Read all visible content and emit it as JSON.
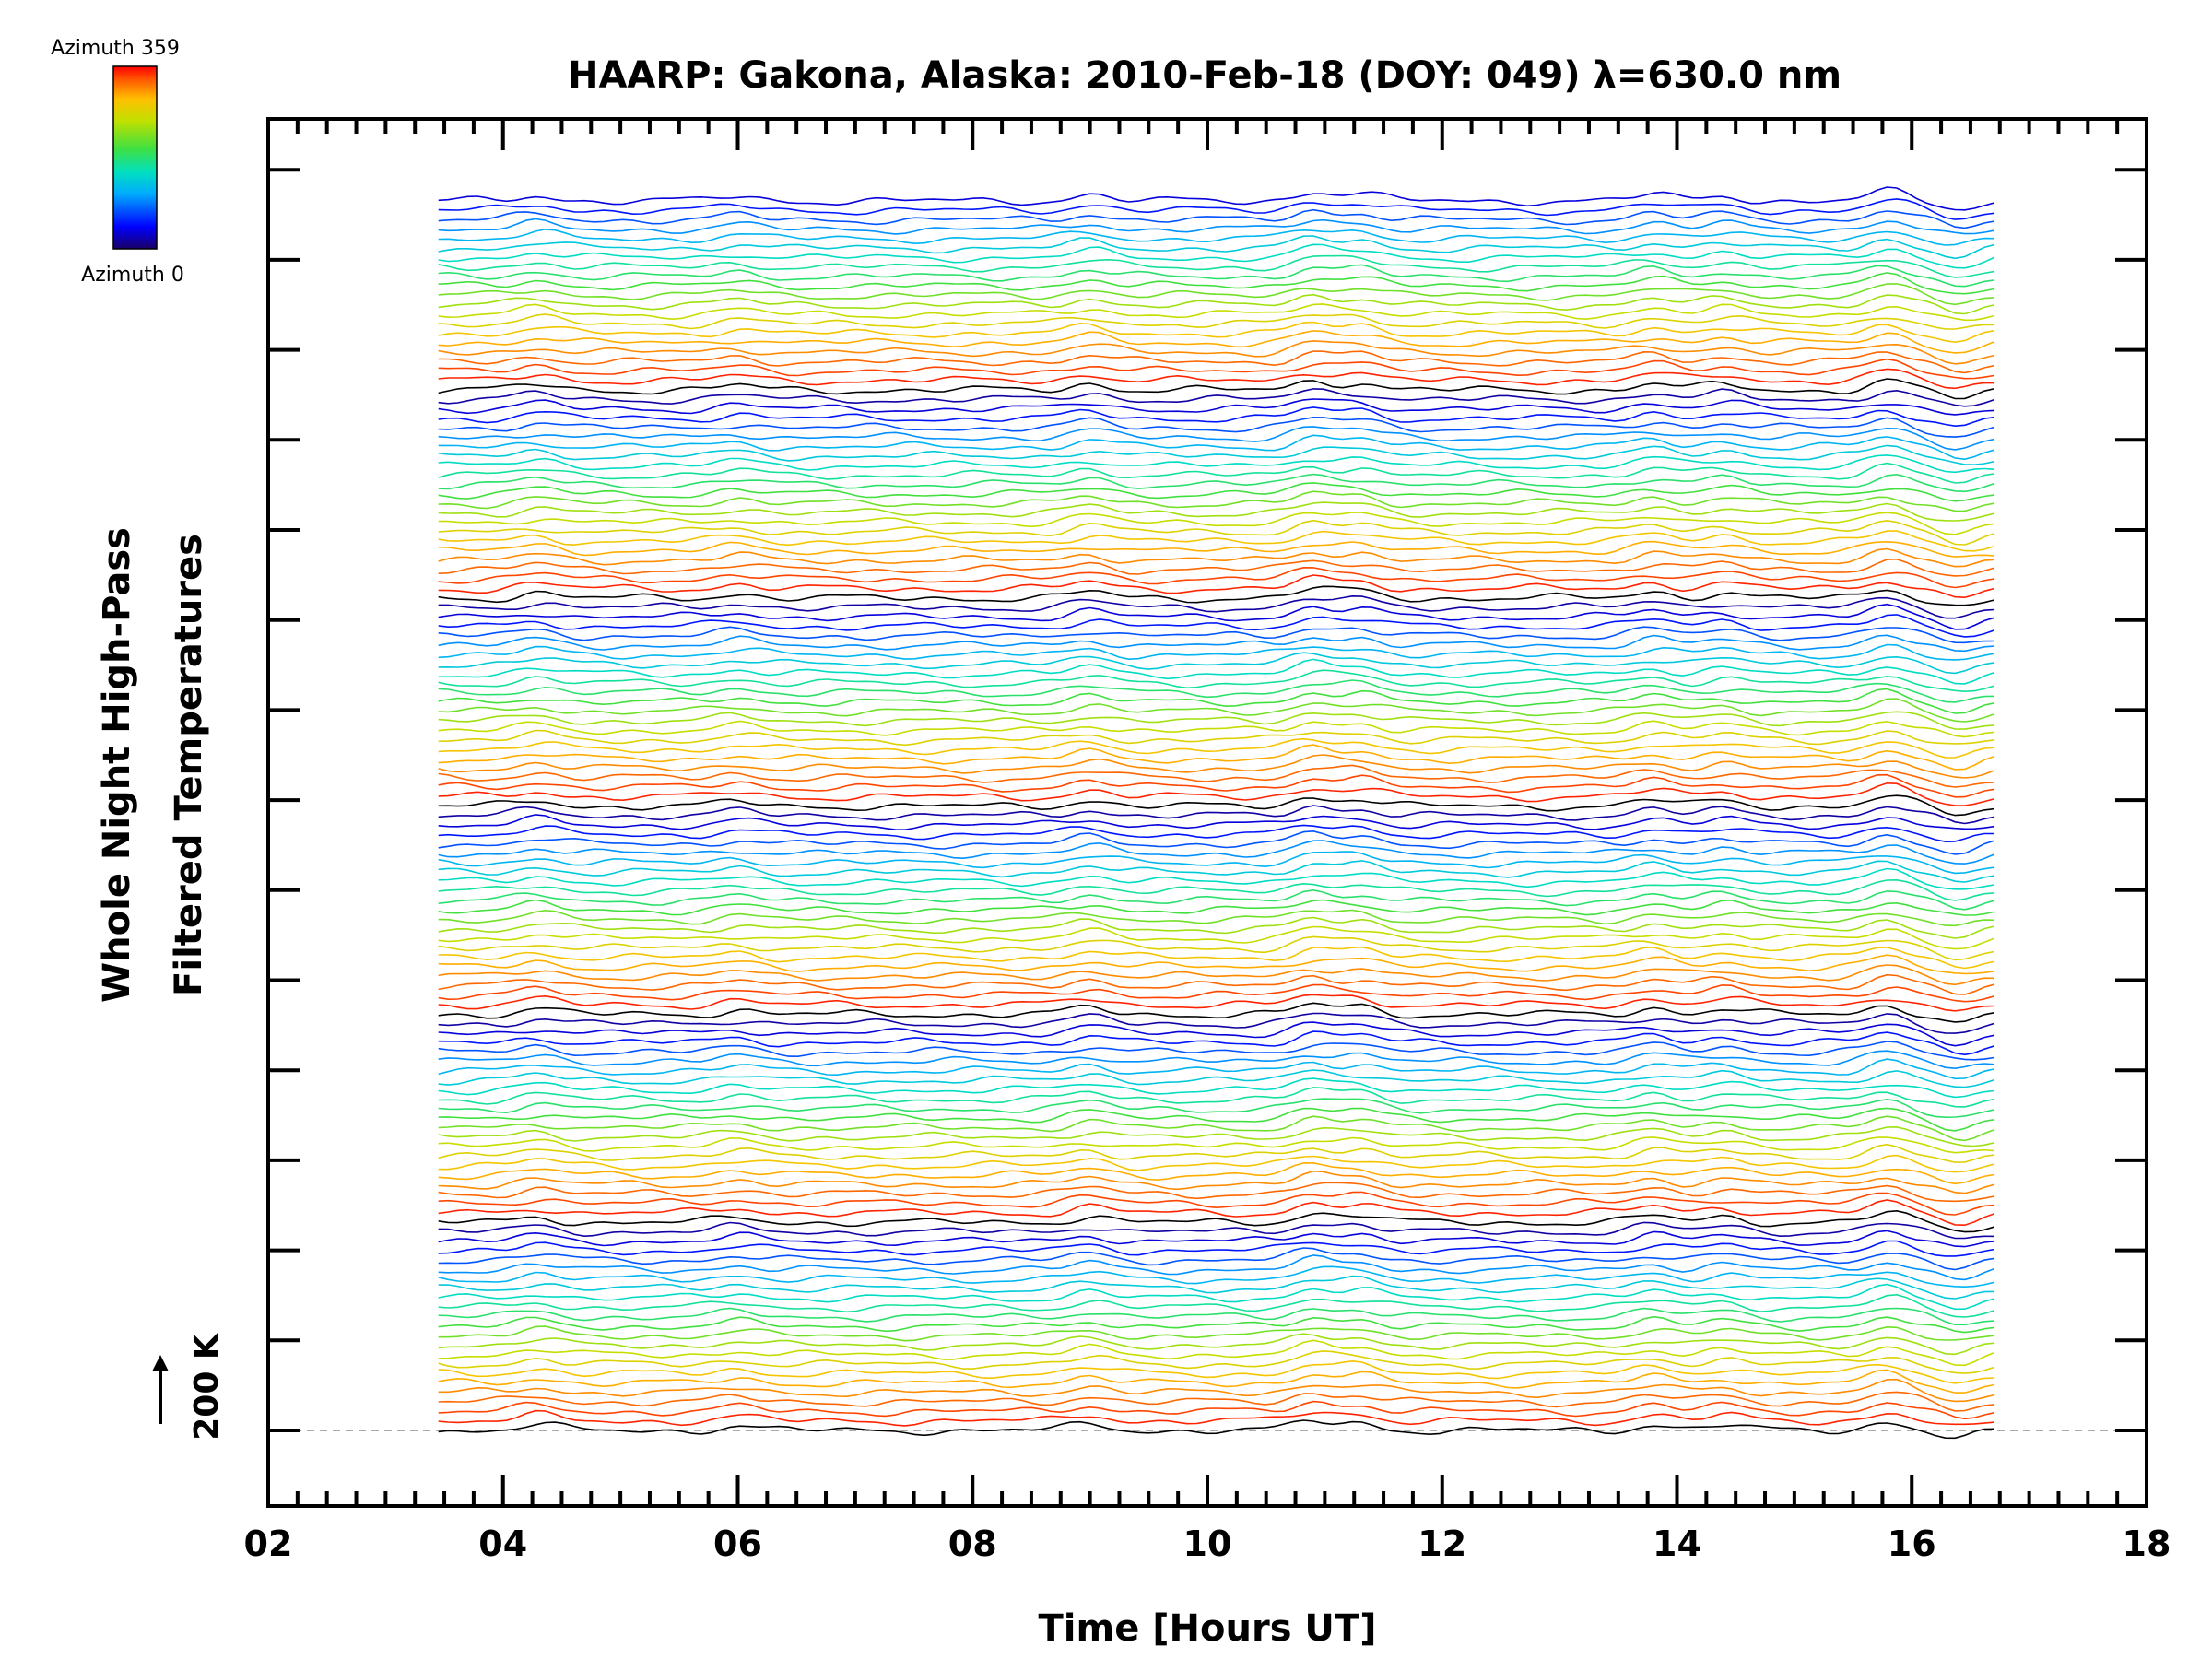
{
  "chart_data": {
    "type": "line",
    "title": "HAARP: Gakona,  Alaska: 2010-Feb-18 (DOY: 049) λ=630.0 nm",
    "xlabel": "Time [Hours UT]",
    "ylabel_line1": "Whole Night High-Pass",
    "ylabel_line2": "Filtered Temperatures",
    "xlim": [
      2,
      18
    ],
    "x_tick_labels": [
      "02",
      "04",
      "06",
      "08",
      "10",
      "12",
      "14",
      "16",
      "18"
    ],
    "x_tick_values": [
      2,
      4,
      6,
      8,
      10,
      12,
      14,
      16,
      18
    ],
    "y_axis_tick_labels": [],
    "scale_bar_label": "200 K",
    "colorbar": {
      "label_top": "Azimuth 359",
      "label_bottom": "Azimuth 0",
      "colors": [
        "#1a0066",
        "#0000ff",
        "#00aaff",
        "#00e0c0",
        "#40e040",
        "#c0e000",
        "#ffc000",
        "#ff6000",
        "#ff0000"
      ]
    },
    "series_time_range": [
      3.45,
      16.7
    ],
    "series_count": 131,
    "stack_groups": 6,
    "grid": false,
    "legend": "colorbar top-left"
  }
}
